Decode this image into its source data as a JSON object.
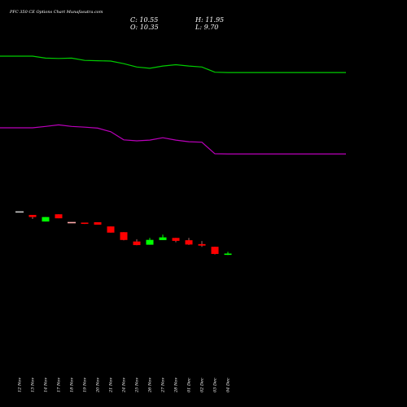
{
  "chart_data": {
    "type": "candlestick",
    "title": "PFC 350 CE Options Chart Munafasutra.com",
    "ohlc": {
      "open_label": "O:",
      "open": "10.35",
      "high_label": "H:",
      "high": "11.95",
      "low_label": "L:",
      "low": "9.70",
      "close_label": "C:",
      "close": "10.55"
    },
    "x_labels": [
      "12 Nov",
      "13 Nov",
      "14 Nov",
      "17 Nov",
      "18 Nov",
      "19 Nov",
      "20 Nov",
      "21 Nov",
      "24 Nov",
      "25 Nov",
      "26 Nov",
      "27 Nov",
      "28 Nov",
      "01 Dec",
      "02 Dec",
      "03 Dec",
      "04 Dec"
    ],
    "candles": [
      {
        "open": 44,
        "close": 44,
        "high": 44,
        "low": 44
      },
      {
        "open": 40,
        "close": 37.6,
        "high": 40,
        "low": 35.4
      },
      {
        "open": 32.6,
        "close": 37.6,
        "high": 37.6,
        "low": 32.6
      },
      {
        "open": 40.7,
        "close": 36.2,
        "high": 40.7,
        "low": 36.2
      },
      {
        "open": 32.1,
        "close": 32.1,
        "high": 32.1,
        "low": 32.1
      },
      {
        "open": 31.4,
        "close": 30.4,
        "high": 31.4,
        "low": 29.9
      },
      {
        "open": 31.8,
        "close": 29.1,
        "high": 31.8,
        "low": 29.1
      },
      {
        "open": 27.1,
        "close": 20.2,
        "high": 27.1,
        "low": 20.2
      },
      {
        "open": 20.7,
        "close": 12,
        "high": 20.7,
        "low": 11.6
      },
      {
        "open": 10.3,
        "close": 6.3,
        "high": 12.8,
        "low": 6.1
      },
      {
        "open": 6.7,
        "close": 12.1,
        "high": 14.3,
        "low": 6.7
      },
      {
        "open": 11.9,
        "close": 14.9,
        "high": 18,
        "low": 11.9
      },
      {
        "open": 14.3,
        "close": 11,
        "high": 14.3,
        "low": 9.4
      },
      {
        "open": 11.7,
        "close": 6.9,
        "high": 14.3,
        "low": 6.5
      },
      {
        "open": 7.4,
        "close": 5.7,
        "high": 10.8,
        "low": 4.3
      },
      {
        "open": 4.4,
        "close": -3.6,
        "high": 4.4,
        "low": -4.1
      },
      {
        "open": -4.1,
        "close": -3.2,
        "high": -1.3,
        "low": -4.8
      }
    ],
    "up_color": "#00ff00",
    "down_color": "#ff0000",
    "green_line": {
      "color": "#00cc00",
      "values": [
        100,
        100,
        97.3,
        96.8,
        97.3,
        94.1,
        93.6,
        93.2,
        89.5,
        84.9,
        83.1,
        86.3,
        88.1,
        86.3,
        84.9,
        77.6,
        77.2
      ]
    },
    "magenta_line": {
      "color": "#bb00bb",
      "values": [
        0,
        0,
        1.9,
        4.1,
        1.9,
        0.9,
        -0.5,
        -5.4,
        -16.8,
        -18.2,
        -17.2,
        -13.9,
        -17.2,
        -19.4,
        -20.1,
        -36.3,
        -36.5
      ]
    },
    "grid": false
  }
}
